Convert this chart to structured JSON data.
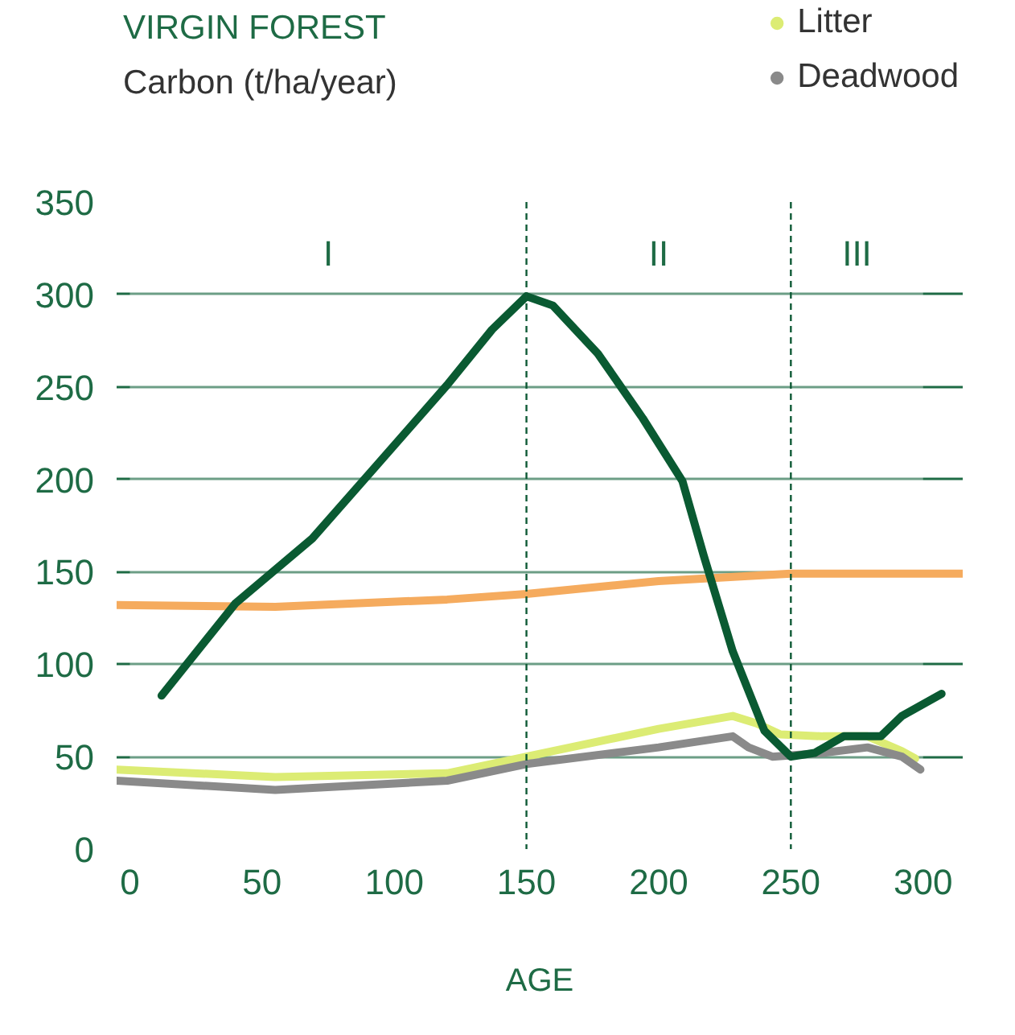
{
  "chart_data": {
    "type": "line",
    "title": "VIRGIN FOREST",
    "ylabel": "Carbon (t/ha/year)",
    "xlabel": "AGE",
    "xlim": [
      -5,
      315
    ],
    "ylim": [
      0,
      350
    ],
    "xticks": [
      0,
      50,
      100,
      150,
      200,
      250,
      300
    ],
    "yticks": [
      0,
      50,
      100,
      150,
      200,
      250,
      300,
      350
    ],
    "grid": "y",
    "legend": "top right",
    "line_style": "solid",
    "marker": "none",
    "ref_lines": [
      {
        "axis": "x",
        "value": 150,
        "color": "#0f5a36",
        "line_style": "dashed"
      },
      {
        "axis": "x",
        "value": 250,
        "color": "#0f5a36",
        "line_style": "dashed"
      }
    ],
    "bands": [
      {
        "axis": "x",
        "from": 0,
        "to": 150,
        "label": "I",
        "color": "#ffffff"
      },
      {
        "axis": "x",
        "from": 150,
        "to": 250,
        "label": "II",
        "color": "#ffffff"
      },
      {
        "axis": "x",
        "from": 250,
        "to": 300,
        "label": "III",
        "color": "#ffffff"
      }
    ],
    "series": [
      {
        "color": "#f5ab5e",
        "x": [
          -5,
          55,
          120,
          150,
          200,
          250,
          315
        ],
        "values": [
          132,
          131,
          135,
          138,
          145,
          149,
          149
        ]
      },
      {
        "name": "Litter",
        "color": "#dcec74",
        "x": [
          -5,
          55,
          120,
          150,
          200,
          228,
          237,
          246,
          262,
          279,
          292,
          297
        ],
        "values": [
          43,
          39,
          41,
          50,
          65,
          72,
          68,
          62,
          61,
          61,
          53,
          49
        ]
      },
      {
        "name": "Deadwood",
        "color": "#8a8a8a",
        "x": [
          -5,
          55,
          120,
          150,
          200,
          228,
          234,
          243,
          262,
          279,
          292,
          299
        ],
        "values": [
          37,
          32,
          37,
          46,
          55,
          61,
          55,
          50,
          52,
          55,
          50,
          43
        ]
      },
      {
        "color": "#0a5a32",
        "x": [
          12,
          40,
          69,
          93,
          120,
          137,
          150,
          160,
          177,
          194,
          209,
          217,
          228,
          240,
          250,
          259,
          270,
          284,
          292,
          307
        ],
        "values": [
          83,
          133,
          168,
          207,
          251,
          281,
          299,
          294,
          268,
          233,
          199,
          159,
          107,
          64,
          50,
          52,
          61,
          61,
          72,
          84
        ]
      }
    ]
  }
}
